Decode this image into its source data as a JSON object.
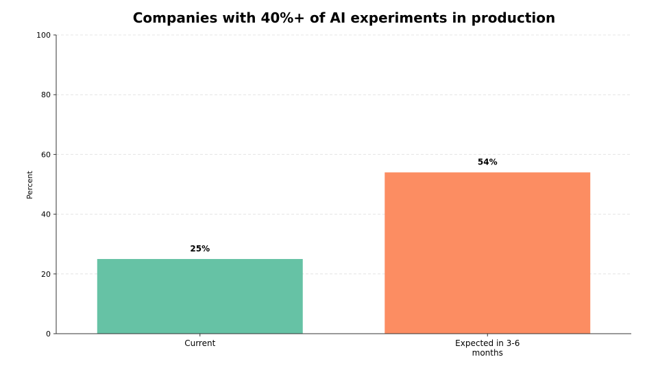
{
  "chart_data": {
    "type": "bar",
    "title": "Companies with 40%+ of AI experiments in production",
    "xlabel": "",
    "ylabel": "Percent",
    "ylim": [
      0,
      100
    ],
    "yticks": [
      0,
      20,
      40,
      60,
      80,
      100
    ],
    "grid": true,
    "categories": [
      "Current",
      "Expected in 3-6 months"
    ],
    "category_lines": [
      [
        "Current"
      ],
      [
        "Expected in 3-6",
        "months"
      ]
    ],
    "values": [
      25,
      54
    ],
    "data_labels": [
      "25%",
      "54%"
    ],
    "colors": [
      "#66c2a5",
      "#fc8d62"
    ]
  }
}
